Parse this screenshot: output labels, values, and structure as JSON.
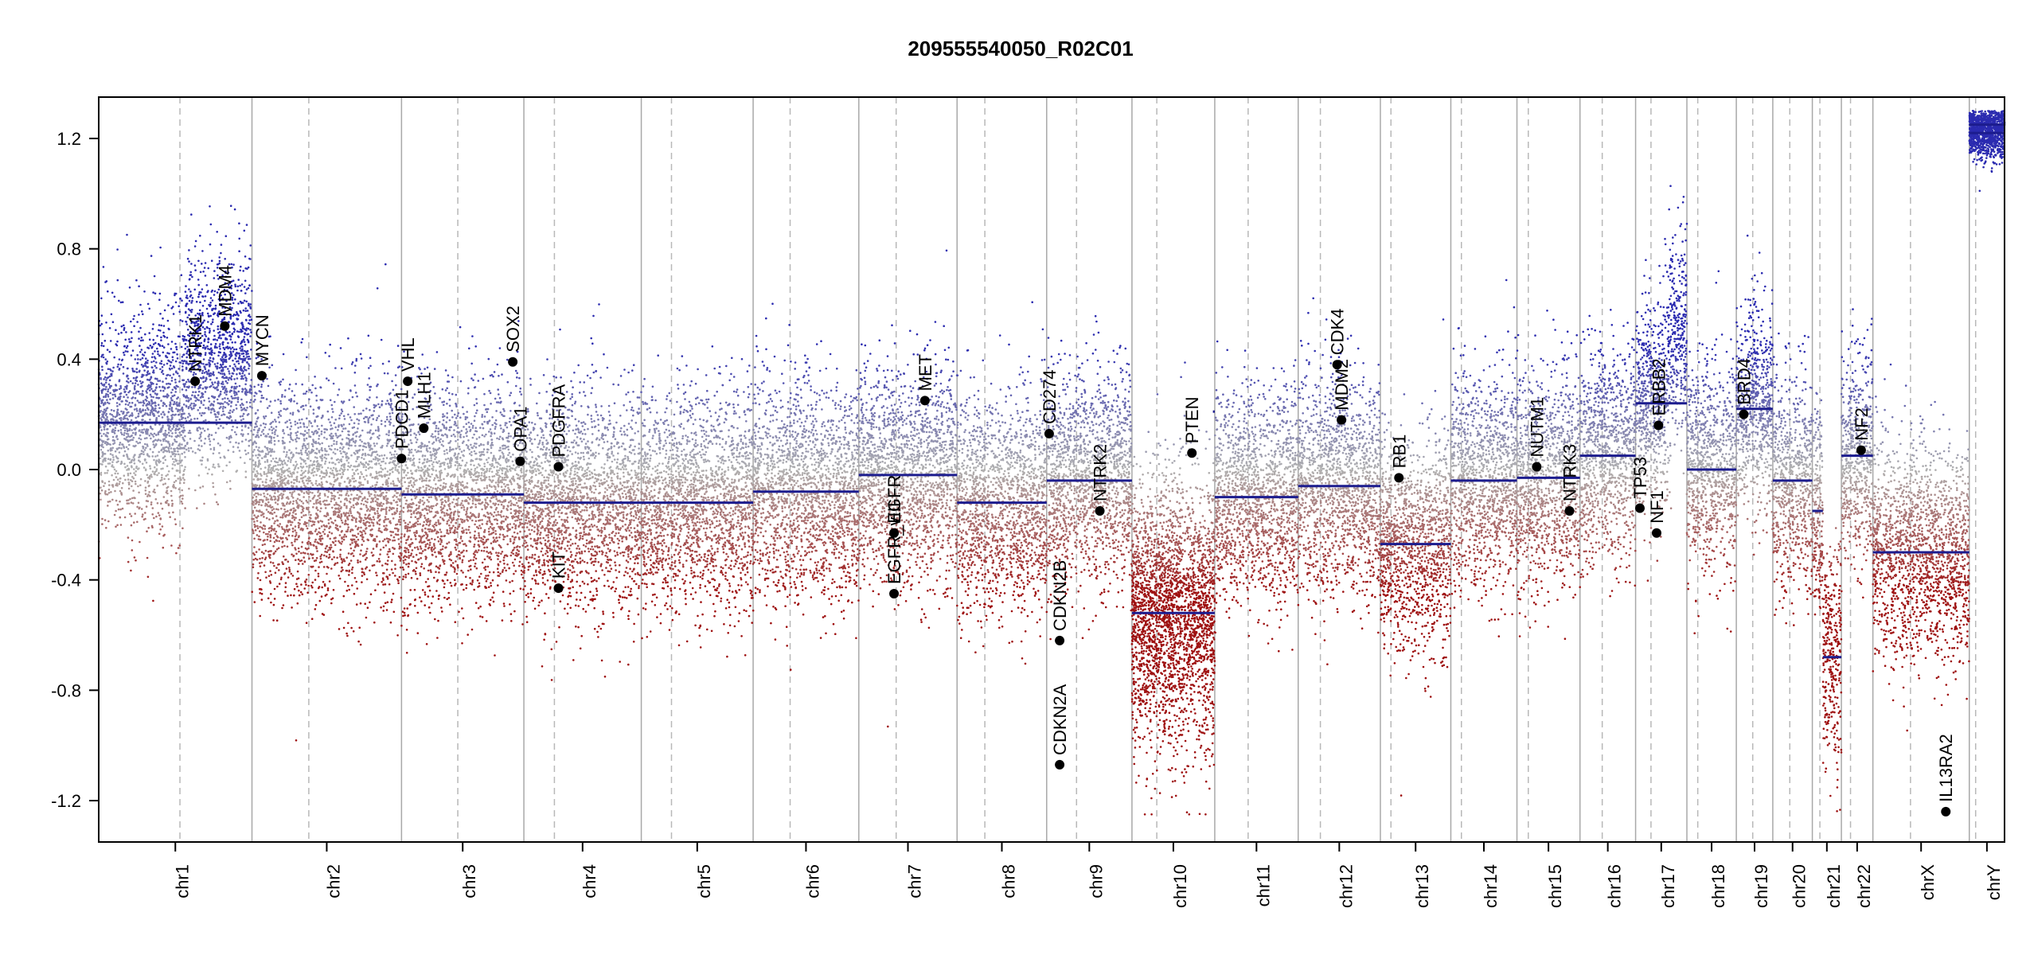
{
  "chart_data": {
    "type": "scatter",
    "subtype": "copy-number-profile",
    "title": "209555540050_R02C01",
    "xlabel": "",
    "ylabel": "",
    "ylim": [
      -1.35,
      1.35
    ],
    "yticks": [
      -1.2,
      -0.8,
      -0.4,
      0.0,
      0.4,
      0.8,
      1.2
    ],
    "ytick_labels": [
      "-1.2",
      "-0.8",
      "-0.4",
      "0.0",
      "0.4",
      "0.8",
      "1.2"
    ],
    "colors": {
      "gain": "#2b2bb0",
      "loss": "#9e1010",
      "neutral": "#b0b0b0",
      "segment": "#1c1c8e",
      "gene_point": "#000000",
      "boundary": "#a8a8a8",
      "centromere": "#b8b8b8"
    },
    "chromosomes": [
      {
        "name": "chr1",
        "start": 0,
        "length": 248,
        "centromere": 0.53
      },
      {
        "name": "chr2",
        "start": 248,
        "length": 242,
        "centromere": 0.38
      },
      {
        "name": "chr3",
        "start": 490,
        "length": 198,
        "centromere": 0.46
      },
      {
        "name": "chr4",
        "start": 688,
        "length": 190,
        "centromere": 0.26
      },
      {
        "name": "chr5",
        "start": 878,
        "length": 181,
        "centromere": 0.27
      },
      {
        "name": "chr6",
        "start": 1059,
        "length": 171,
        "centromere": 0.35
      },
      {
        "name": "chr7",
        "start": 1230,
        "length": 159,
        "centromere": 0.38
      },
      {
        "name": "chr8",
        "start": 1389,
        "length": 145,
        "centromere": 0.31
      },
      {
        "name": "chr9",
        "start": 1534,
        "length": 138,
        "centromere": 0.35
      },
      {
        "name": "chr10",
        "start": 1672,
        "length": 134,
        "centromere": 0.3
      },
      {
        "name": "chr11",
        "start": 1806,
        "length": 135,
        "centromere": 0.4
      },
      {
        "name": "chr12",
        "start": 1941,
        "length": 133,
        "centromere": 0.27
      },
      {
        "name": "chr13",
        "start": 2074,
        "length": 114,
        "centromere": 0.15
      },
      {
        "name": "chr14",
        "start": 2188,
        "length": 107,
        "centromere": 0.16
      },
      {
        "name": "chr15",
        "start": 2295,
        "length": 102,
        "centromere": 0.18
      },
      {
        "name": "chr16",
        "start": 2397,
        "length": 90,
        "centromere": 0.4
      },
      {
        "name": "chr17",
        "start": 2487,
        "length": 83,
        "centromere": 0.3
      },
      {
        "name": "chr18",
        "start": 2570,
        "length": 80,
        "centromere": 0.22
      },
      {
        "name": "chr19",
        "start": 2650,
        "length": 59,
        "centromere": 0.45
      },
      {
        "name": "chr20",
        "start": 2709,
        "length": 64,
        "centromere": 0.43
      },
      {
        "name": "chr21",
        "start": 2773,
        "length": 47,
        "centromere": 0.26
      },
      {
        "name": "chr22",
        "start": 2820,
        "length": 51,
        "centromere": 0.29
      },
      {
        "name": "chrX",
        "start": 2871,
        "length": 156,
        "centromere": 0.39
      },
      {
        "name": "chrY",
        "start": 3027,
        "length": 57,
        "centromere": 0.18
      }
    ],
    "segments": [
      {
        "chr": "chr1",
        "x0": 0,
        "x1": 248,
        "value": 0.17
      },
      {
        "chr": "chr2",
        "x0": 248,
        "x1": 490,
        "value": -0.07
      },
      {
        "chr": "chr3",
        "x0": 490,
        "x1": 688,
        "value": -0.09
      },
      {
        "chr": "chr4",
        "x0": 688,
        "x1": 878,
        "value": -0.12
      },
      {
        "chr": "chr5",
        "x0": 878,
        "x1": 1059,
        "value": -0.12
      },
      {
        "chr": "chr6",
        "x0": 1059,
        "x1": 1230,
        "value": -0.08
      },
      {
        "chr": "chr7",
        "x0": 1230,
        "x1": 1389,
        "value": -0.02
      },
      {
        "chr": "chr8",
        "x0": 1389,
        "x1": 1534,
        "value": -0.12
      },
      {
        "chr": "chr9",
        "x0": 1534,
        "x1": 1672,
        "value": -0.04
      },
      {
        "chr": "chr10",
        "x0": 1672,
        "x1": 1806,
        "value": -0.52
      },
      {
        "chr": "chr11",
        "x0": 1806,
        "x1": 1941,
        "value": -0.1
      },
      {
        "chr": "chr12",
        "x0": 1941,
        "x1": 2074,
        "value": -0.06
      },
      {
        "chr": "chr13",
        "x0": 2074,
        "x1": 2188,
        "value": -0.27
      },
      {
        "chr": "chr14",
        "x0": 2188,
        "x1": 2295,
        "value": -0.04
      },
      {
        "chr": "chr15",
        "x0": 2295,
        "x1": 2397,
        "value": -0.03
      },
      {
        "chr": "chr16",
        "x0": 2397,
        "x1": 2487,
        "value": 0.05
      },
      {
        "chr": "chr17",
        "x0": 2487,
        "x1": 2570,
        "value": 0.24
      },
      {
        "chr": "chr18",
        "x0": 2570,
        "x1": 2650,
        "value": 0.0
      },
      {
        "chr": "chr19",
        "x0": 2650,
        "x1": 2709,
        "value": 0.22
      },
      {
        "chr": "chr20",
        "x0": 2709,
        "x1": 2773,
        "value": -0.04
      },
      {
        "chr": "chr21",
        "x0": 2773,
        "x1": 2790,
        "value": -0.15
      },
      {
        "chr": "chr21",
        "x0": 2790,
        "x1": 2820,
        "value": -0.68
      },
      {
        "chr": "chr22",
        "x0": 2820,
        "x1": 2871,
        "value": 0.05
      },
      {
        "chr": "chrX",
        "x0": 2871,
        "x1": 3027,
        "value": -0.3
      },
      {
        "chr": "chrY",
        "x0": 3027,
        "x1": 3084,
        "value": 1.22
      },
      {
        "chr": "chrY",
        "x0": 3027,
        "x1": 3084,
        "value": 1.25
      },
      {
        "chr": "chr10",
        "x0": 1803,
        "x1": 1806,
        "value": 0.21
      }
    ],
    "genes": [
      {
        "name": "NTRK1",
        "x": 156,
        "value": 0.32
      },
      {
        "name": "MDM4",
        "x": 204,
        "value": 0.52
      },
      {
        "name": "MYCN",
        "x": 264,
        "value": 0.34
      },
      {
        "name": "PDCD1",
        "x": 490,
        "value": 0.04
      },
      {
        "name": "VHL",
        "x": 500,
        "value": 0.32
      },
      {
        "name": "MLH1",
        "x": 526,
        "value": 0.15
      },
      {
        "name": "SOX2",
        "x": 670,
        "value": 0.39
      },
      {
        "name": "OPA1",
        "x": 682,
        "value": 0.03
      },
      {
        "name": "PDGFRA",
        "x": 744,
        "value": 0.01
      },
      {
        "name": "KIT",
        "x": 744,
        "value": -0.43
      },
      {
        "name": "EGFR_vIII",
        "x": 1287,
        "value": -0.45
      },
      {
        "name": "EGFR",
        "x": 1287,
        "value": -0.23
      },
      {
        "name": "MET",
        "x": 1337,
        "value": 0.25
      },
      {
        "name": "CD274",
        "x": 1538,
        "value": 0.13
      },
      {
        "name": "CDKN2A",
        "x": 1555,
        "value": -1.07
      },
      {
        "name": "CDKN2B",
        "x": 1555,
        "value": -0.62
      },
      {
        "name": "NTRK2",
        "x": 1620,
        "value": -0.15
      },
      {
        "name": "PTEN",
        "x": 1769,
        "value": 0.06
      },
      {
        "name": "CDK4",
        "x": 2004,
        "value": 0.38
      },
      {
        "name": "MDM2",
        "x": 2011,
        "value": 0.18
      },
      {
        "name": "RB1",
        "x": 2104,
        "value": -0.03
      },
      {
        "name": "NUTM1",
        "x": 2327,
        "value": 0.01
      },
      {
        "name": "NTRK3",
        "x": 2380,
        "value": -0.15
      },
      {
        "name": "TP53",
        "x": 2494,
        "value": -0.14
      },
      {
        "name": "NF1",
        "x": 2521,
        "value": -0.23
      },
      {
        "name": "ERBB2",
        "x": 2524,
        "value": 0.16
      },
      {
        "name": "BRD4",
        "x": 2662,
        "value": 0.2
      },
      {
        "name": "NF2",
        "x": 2852,
        "value": 0.07
      },
      {
        "name": "IL13RA2",
        "x": 2989,
        "value": -1.24
      }
    ]
  }
}
